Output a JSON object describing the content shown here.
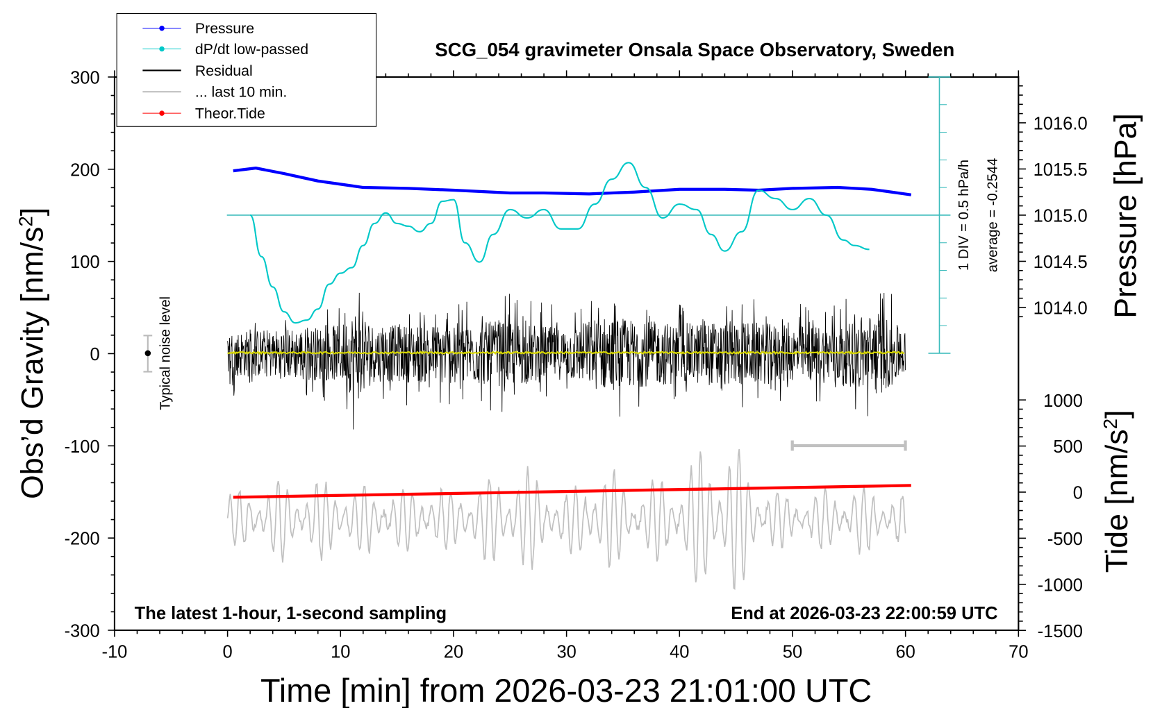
{
  "chart_data": {
    "type": "line",
    "title": "SCG_054 gravimeter Onsala Space Observatory, Sweden",
    "xlabel": "Time [min] from 2026-03-23 21:01:00 UTC",
    "ylabel_left": "Obs'd Gravity [nm/s2]",
    "ylabel_right_top": "Pressure [hPa]",
    "ylabel_right_bottom": "Tide [nm/s2]",
    "xlim": [
      -10,
      70
    ],
    "ylim": [
      -300,
      300
    ],
    "pressure_lim_ticks": [
      1014.0,
      1014.5,
      1015.0,
      1015.5,
      1016.0
    ],
    "tide_ticks": [
      -1500,
      -1000,
      -500,
      0,
      500,
      1000
    ],
    "x_ticks": [
      -10,
      0,
      10,
      20,
      30,
      40,
      50,
      60,
      70
    ],
    "y_ticks": [
      -300,
      -200,
      -100,
      0,
      100,
      200,
      300
    ],
    "legend": {
      "placement": "top-left",
      "entries": [
        "Pressure",
        "dP/dt low-passed",
        "Residual",
        "... last 10 min.",
        "Theor.Tide"
      ]
    },
    "annotations": {
      "left_bottom": "The latest 1-hour, 1-second sampling",
      "right_bottom": "End at 2026-03-23 22:00:59 UTC",
      "div": "1 DIV = 0.5 hPa/h",
      "average": "average = -0.2544",
      "noise": "Typical noise level"
    },
    "series": [
      {
        "name": "Pressure",
        "unit": "hPa",
        "color": "#0000ff",
        "x": [
          0.5,
          2.5,
          5,
          8,
          12,
          16,
          20,
          25,
          28,
          32,
          36,
          40,
          44,
          47,
          50,
          54,
          57,
          60.5
        ],
        "y": [
          1015.48,
          1015.51,
          1015.45,
          1015.37,
          1015.3,
          1015.29,
          1015.27,
          1015.24,
          1015.24,
          1015.23,
          1015.25,
          1015.28,
          1015.28,
          1015.27,
          1015.29,
          1015.3,
          1015.28,
          1015.22
        ]
      },
      {
        "name": "dP/dt low-passed",
        "unit": "hPa/h",
        "color": "#00c8c8",
        "x": [
          2,
          3,
          4,
          5,
          6,
          7,
          8,
          9,
          10,
          11,
          12,
          13,
          14,
          15,
          16,
          17,
          18,
          19,
          20,
          21,
          22.3,
          23.5,
          25,
          26.5,
          28,
          29.5,
          31,
          32.5,
          34,
          35.5,
          37,
          38.5,
          40,
          41.5,
          42.8,
          44,
          45.5,
          47,
          48.5,
          50,
          51.5,
          53,
          54.5,
          55.5,
          56.8
        ],
        "y": [
          0,
          -0.75,
          -1.3,
          -1.75,
          -1.95,
          -1.9,
          -1.7,
          -1.25,
          -1.05,
          -0.95,
          -0.55,
          -0.15,
          0.04,
          -0.15,
          -0.2,
          -0.3,
          -0.15,
          0.25,
          0.28,
          -0.5,
          -0.85,
          -0.35,
          0.1,
          -0.05,
          0.1,
          -0.25,
          -0.25,
          0.2,
          0.65,
          0.95,
          0.5,
          -0.05,
          0.2,
          0.1,
          -0.35,
          -0.65,
          -0.3,
          0.45,
          0.3,
          0.1,
          0.3,
          0.0,
          -0.45,
          -0.55,
          -0.62
        ]
      },
      {
        "name": "Residual",
        "unit": "nm/s2",
        "color": "#000000",
        "x_range": [
          0,
          60
        ],
        "envelope_x": [
          0,
          5,
          10,
          11.5,
          13,
          20,
          25,
          30,
          33,
          37,
          40,
          45,
          50,
          55,
          57.5,
          60
        ],
        "envelope": [
          45,
          50,
          55,
          95,
          55,
          60,
          65,
          50,
          75,
          65,
          60,
          65,
          55,
          60,
          85,
          45
        ]
      },
      {
        "name": "... last 10 min.",
        "unit": "nm/s2",
        "color": "#c0c0c0",
        "x_range": [
          0,
          60
        ],
        "offset": -180,
        "envelope_x": [
          0,
          5,
          10,
          20,
          24,
          26,
          30,
          33,
          36,
          40,
          42,
          45,
          47,
          50,
          55,
          60
        ],
        "envelope": [
          30,
          45,
          40,
          35,
          50,
          60,
          30,
          65,
          35,
          55,
          80,
          85,
          45,
          25,
          40,
          30
        ]
      },
      {
        "name": "Theor.Tide",
        "unit": "nm/s2",
        "color": "#ff0000",
        "x": [
          0.5,
          60.5
        ],
        "y": [
          -56,
          72
        ]
      }
    ]
  }
}
